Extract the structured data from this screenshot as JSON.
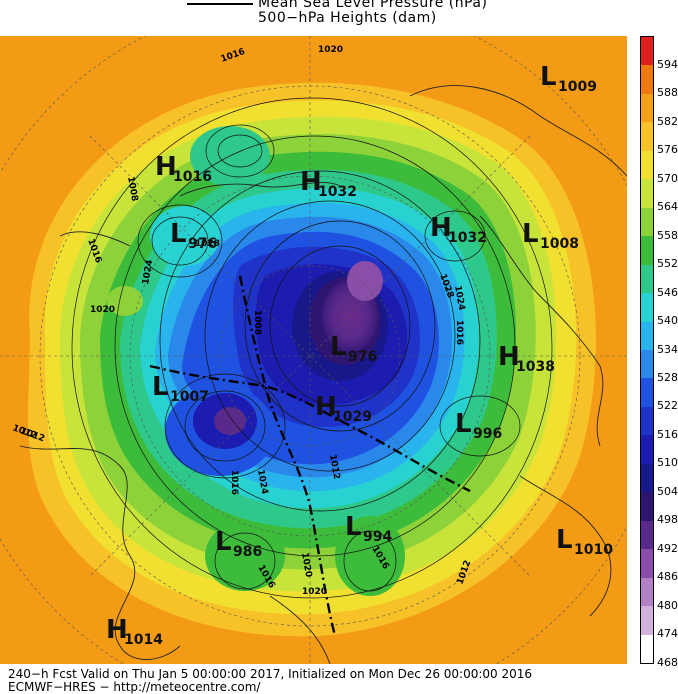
{
  "header": {
    "legend_line1": "Mean Sea Level Pressure (hPa)",
    "legend_line2": "500−hPa Heights (dam)"
  },
  "footer": {
    "line1": "240−h Fcst Valid on Thu Jan  5 00:00:00 2017, Initialized on Mon Dec 26 00:00:00 2016",
    "line2": "ECMWF−HRES  − http://meteocentre.com/"
  },
  "colorbar": {
    "levels": [
      "594",
      "588",
      "582",
      "576",
      "570",
      "564",
      "558",
      "552",
      "546",
      "540",
      "534",
      "528",
      "522",
      "516",
      "510",
      "504",
      "498",
      "492",
      "486",
      "480",
      "474",
      "468"
    ],
    "colors": [
      "#e0201c",
      "#f07a10",
      "#f5a118",
      "#f7c128",
      "#f2e030",
      "#c8e43a",
      "#8ed23a",
      "#3dbb3a",
      "#2ec88a",
      "#28d2d0",
      "#2ab4ee",
      "#2a88ea",
      "#1f52e0",
      "#2033c8",
      "#1c1cb0",
      "#18188a",
      "#2e1670",
      "#5a2a8a",
      "#8a4ea8",
      "#b280c4",
      "#d4b0dc",
      "#ffffff"
    ]
  },
  "pressure_systems": [
    {
      "type": "L",
      "value": "1009"
    },
    {
      "type": "H",
      "value": "1016"
    },
    {
      "type": "H",
      "value": "1032"
    },
    {
      "type": "L",
      "value": "976"
    },
    {
      "type": "H",
      "value": "1032"
    },
    {
      "type": "L",
      "value": "1008"
    },
    {
      "type": "L",
      "value": "976"
    },
    {
      "type": "H",
      "value": "1038"
    },
    {
      "type": "L",
      "value": "1007"
    },
    {
      "type": "H",
      "value": "1029"
    },
    {
      "type": "L",
      "value": "996"
    },
    {
      "type": "L",
      "value": "994"
    },
    {
      "type": "L",
      "value": "986"
    },
    {
      "type": "L",
      "value": "1010"
    },
    {
      "type": "H",
      "value": "1014"
    }
  ],
  "isobar_labels": [
    "1012",
    "1016",
    "1020",
    "1008",
    "1016",
    "1024",
    "1020",
    "1028",
    "1008",
    "1028",
    "1024",
    "1016",
    "1012",
    "1016",
    "1020",
    "1016",
    "1024",
    "1012",
    "1016",
    "1020",
    "1012"
  ],
  "map": {
    "background_color": "#f49b16"
  }
}
